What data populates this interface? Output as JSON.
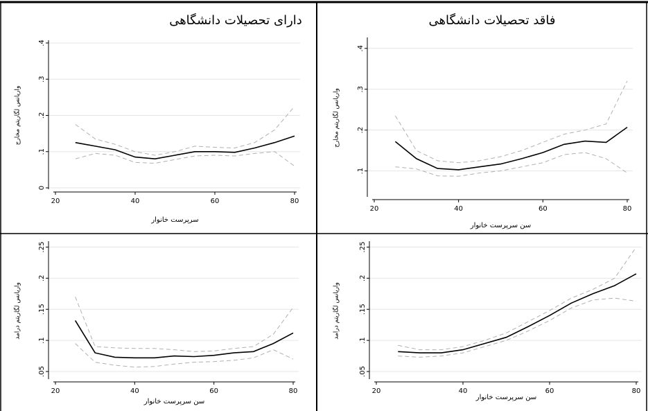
{
  "column_headers": [
    "فاقد تحصیلات دانشگاهی",
    "دارای تحصیلات دانشگاهی"
  ],
  "chart_data": [
    {
      "type": "line",
      "x_label": "سرپرست خانوار",
      "y_label": "واریانس لگاریتم مخارج",
      "x": [
        25,
        30,
        35,
        40,
        45,
        50,
        55,
        60,
        65,
        70,
        75,
        80
      ],
      "xlim": [
        20,
        80
      ],
      "xticks": [
        20,
        40,
        60,
        80
      ],
      "ylim": [
        0,
        0.4
      ],
      "yticks": [
        0,
        {
          "value": 0.1,
          "label": ".1"
        },
        {
          "value": 0.2,
          "label": ".2"
        },
        {
          "value": 0.3,
          "label": ".3"
        },
        {
          "value": 0.4,
          "label": ".4"
        }
      ],
      "grid": true,
      "series": [
        {
          "color": "#000000",
          "dashed": false,
          "values": [
            0.125,
            0.115,
            0.105,
            0.085,
            0.08,
            0.09,
            0.1,
            0.1,
            0.098,
            0.11,
            0.125,
            0.143
          ]
        },
        {
          "color": "#b0b0b0",
          "dashed": true,
          "values": [
            0.175,
            0.135,
            0.12,
            0.1,
            0.09,
            0.1,
            0.115,
            0.112,
            0.11,
            0.125,
            0.16,
            0.225
          ]
        },
        {
          "color": "#b0b0b0",
          "dashed": true,
          "values": [
            0.08,
            0.095,
            0.09,
            0.07,
            0.068,
            0.078,
            0.088,
            0.09,
            0.088,
            0.095,
            0.1,
            0.06
          ]
        }
      ]
    },
    {
      "type": "line",
      "x_label": "سن سرپرست خانوار",
      "y_label": "واریانس لگاریتم مخارج",
      "x": [
        25,
        30,
        35,
        40,
        45,
        50,
        55,
        60,
        65,
        70,
        75,
        80
      ],
      "xlim": [
        20,
        80
      ],
      "xticks": [
        20,
        40,
        60,
        80
      ],
      "ylim": [
        0.04,
        0.42
      ],
      "yticks": [
        {
          "value": 0.1,
          "label": ".1"
        },
        {
          "value": 0.2,
          "label": ".2"
        },
        {
          "value": 0.3,
          "label": ".3"
        },
        {
          "value": 0.4,
          "label": ".4"
        }
      ],
      "grid": true,
      "series": [
        {
          "color": "#000000",
          "dashed": false,
          "values": [
            0.172,
            0.13,
            0.106,
            0.103,
            0.11,
            0.117,
            0.13,
            0.145,
            0.165,
            0.173,
            0.17,
            0.207
          ]
        },
        {
          "color": "#b0b0b0",
          "dashed": true,
          "values": [
            0.235,
            0.15,
            0.125,
            0.12,
            0.125,
            0.135,
            0.15,
            0.17,
            0.19,
            0.2,
            0.215,
            0.32
          ]
        },
        {
          "color": "#b0b0b0",
          "dashed": true,
          "values": [
            0.11,
            0.105,
            0.088,
            0.087,
            0.095,
            0.1,
            0.11,
            0.12,
            0.14,
            0.145,
            0.13,
            0.095
          ]
        }
      ]
    },
    {
      "type": "line",
      "x_label": "سن سرپرست خانوار",
      "y_label": "واریانس لگاریتم درامد",
      "x": [
        25,
        30,
        35,
        40,
        45,
        50,
        55,
        60,
        65,
        70,
        75,
        80
      ],
      "xlim": [
        20,
        80
      ],
      "xticks": [
        20,
        40,
        60,
        80
      ],
      "ylim": [
        0.04,
        0.255
      ],
      "yticks": [
        {
          "value": 0.05,
          "label": ".05"
        },
        {
          "value": 0.1,
          "label": ".1"
        },
        {
          "value": 0.15,
          "label": ".15"
        },
        {
          "value": 0.2,
          "label": ".2"
        },
        {
          "value": 0.25,
          "label": ".25"
        }
      ],
      "grid": true,
      "series": [
        {
          "color": "#000000",
          "dashed": false,
          "values": [
            0.132,
            0.08,
            0.073,
            0.072,
            0.072,
            0.075,
            0.074,
            0.076,
            0.08,
            0.082,
            0.095,
            0.112
          ]
        },
        {
          "color": "#b0b0b0",
          "dashed": true,
          "values": [
            0.17,
            0.09,
            0.088,
            0.087,
            0.087,
            0.085,
            0.082,
            0.083,
            0.087,
            0.09,
            0.11,
            0.153
          ]
        },
        {
          "color": "#b0b0b0",
          "dashed": true,
          "values": [
            0.095,
            0.065,
            0.06,
            0.057,
            0.058,
            0.062,
            0.065,
            0.066,
            0.068,
            0.072,
            0.085,
            0.07
          ]
        }
      ]
    },
    {
      "type": "line",
      "x_label": "سن سرپرست خانوار",
      "y_label": "واریانس لگاریتم درامد",
      "x": [
        25,
        30,
        35,
        40,
        45,
        50,
        55,
        60,
        65,
        70,
        75,
        80
      ],
      "xlim": [
        20,
        80
      ],
      "xticks": [
        20,
        40,
        60,
        80
      ],
      "ylim": [
        0.04,
        0.255
      ],
      "yticks": [
        {
          "value": 0.05,
          "label": ".05"
        },
        {
          "value": 0.1,
          "label": ".1"
        },
        {
          "value": 0.15,
          "label": ".15"
        },
        {
          "value": 0.2,
          "label": ".2"
        },
        {
          "value": 0.25,
          "label": ".25"
        }
      ],
      "grid": true,
      "series": [
        {
          "color": "#000000",
          "dashed": false,
          "values": [
            0.082,
            0.08,
            0.08,
            0.085,
            0.095,
            0.105,
            0.122,
            0.14,
            0.16,
            0.175,
            0.188,
            0.207
          ]
        },
        {
          "color": "#b0b0b0",
          "dashed": true,
          "values": [
            0.092,
            0.085,
            0.085,
            0.09,
            0.1,
            0.112,
            0.13,
            0.148,
            0.168,
            0.182,
            0.2,
            0.25
          ]
        },
        {
          "color": "#b0b0b0",
          "dashed": true,
          "values": [
            0.075,
            0.073,
            0.075,
            0.08,
            0.09,
            0.1,
            0.115,
            0.132,
            0.152,
            0.165,
            0.168,
            0.163
          ]
        }
      ]
    }
  ]
}
